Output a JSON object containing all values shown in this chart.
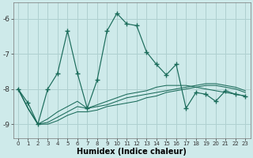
{
  "xlabel": "Humidex (Indice chaleur)",
  "background_color": "#ceeaea",
  "grid_color": "#afd0d0",
  "line_color": "#1a6b5a",
  "x": [
    0,
    1,
    2,
    3,
    4,
    5,
    6,
    7,
    8,
    9,
    10,
    11,
    12,
    13,
    14,
    15,
    16,
    17,
    18,
    19,
    20,
    21,
    22,
    23
  ],
  "y_main": [
    -8.0,
    -8.4,
    -9.0,
    -8.0,
    -7.55,
    -6.35,
    -7.55,
    -8.55,
    -7.75,
    -6.35,
    -5.85,
    -6.15,
    -6.2,
    -6.95,
    -7.3,
    -7.6,
    -7.3,
    -8.55,
    -8.1,
    -8.15,
    -8.35,
    -8.05,
    -8.15,
    -8.2
  ],
  "y_reg1": [
    -8.0,
    -8.55,
    -9.0,
    -8.85,
    -8.65,
    -8.5,
    -8.35,
    -8.55,
    -8.45,
    -8.35,
    -8.25,
    -8.15,
    -8.1,
    -8.05,
    -7.95,
    -7.9,
    -7.9,
    -7.9,
    -7.95,
    -8.0,
    -8.05,
    -8.1,
    -8.15,
    -8.2
  ],
  "y_reg2": [
    -8.0,
    -8.55,
    -9.0,
    -8.95,
    -8.8,
    -8.65,
    -8.5,
    -8.55,
    -8.5,
    -8.45,
    -8.35,
    -8.25,
    -8.2,
    -8.15,
    -8.1,
    -8.05,
    -8.0,
    -7.95,
    -7.9,
    -7.85,
    -7.85,
    -7.9,
    -7.95,
    -8.05
  ],
  "y_reg3": [
    -8.0,
    -8.55,
    -9.0,
    -9.0,
    -8.9,
    -8.75,
    -8.65,
    -8.65,
    -8.6,
    -8.5,
    -8.45,
    -8.4,
    -8.35,
    -8.25,
    -8.2,
    -8.1,
    -8.05,
    -8.0,
    -7.95,
    -7.9,
    -7.9,
    -7.95,
    -8.0,
    -8.1
  ],
  "ylim": [
    -9.4,
    -5.55
  ],
  "yticks": [
    -9,
    -8,
    -7,
    -6
  ],
  "xlim": [
    -0.5,
    23.5
  ],
  "xtick_labels": [
    "0",
    "1",
    "2",
    "3",
    "4",
    "5",
    "6",
    "7",
    "8",
    "9",
    "10",
    "11",
    "12",
    "13",
    "14",
    "15",
    "16",
    "17",
    "18",
    "19",
    "20",
    "21",
    "22",
    "23"
  ]
}
